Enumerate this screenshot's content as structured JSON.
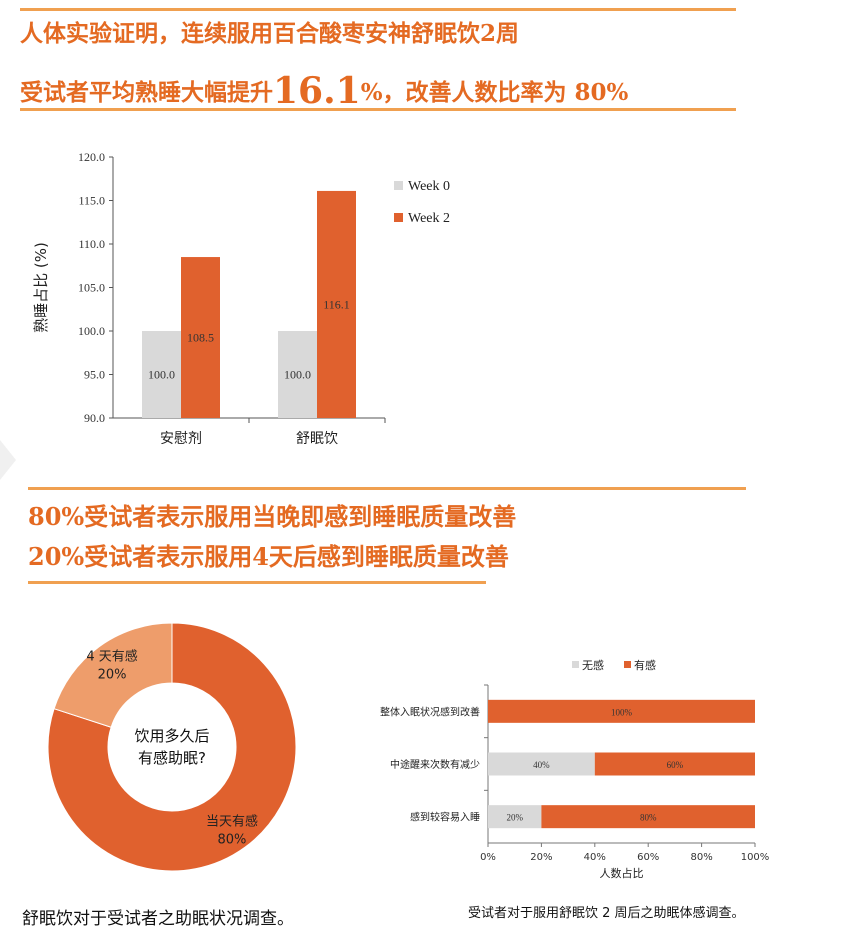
{
  "headline": {
    "line1": "人体实验证明，连续服用百合酸枣安神舒眠饮2周",
    "line2_prefix": "受试者平均熟睡大幅提升",
    "line2_big": "16.1",
    "line2_suffix": "%，改善人数比率为 80%",
    "line3": "80%受试者表示服用当晚即感到睡眠质量改善",
    "line4": "20%受试者表示服用4天后感到睡眠质量改善"
  },
  "colors": {
    "orange": "#e0612e",
    "gray": "#d9d9d9",
    "light_orange": "#ee9d6b",
    "accent": "#e46a22",
    "rule": "#f0a050"
  },
  "captions": {
    "donut": "舒眠饮对于受试者之助眠状况调查。",
    "hbar": "受试者对于服用舒眠饮 2 周后之助眠体感调查。"
  },
  "chart_data": [
    {
      "type": "bar",
      "ylabel": "熟睡占比 (%)",
      "categories": [
        "安慰剂",
        "舒眠饮"
      ],
      "series": [
        {
          "name": "Week 0",
          "values": [
            100.0,
            100.0
          ],
          "labels": [
            "100.0",
            "100.0"
          ],
          "color": "#d9d9d9"
        },
        {
          "name": "Week 2",
          "values": [
            108.5,
            116.1
          ],
          "labels": [
            "108.5",
            "116.1"
          ],
          "color": "#e0612e"
        }
      ],
      "ylim": [
        90,
        120
      ],
      "yticks": [
        "90.0",
        "95.0",
        "100.0",
        "105.0",
        "110.0",
        "115.0",
        "120.0"
      ],
      "legend": "right"
    },
    {
      "type": "pie",
      "center_text": [
        "饮用多久后",
        "有感助眠?"
      ],
      "slices": [
        {
          "label": "当天有感",
          "pct_label": "80%",
          "value": 80,
          "color": "#e0612e"
        },
        {
          "label": "4 天有感",
          "pct_label": "20%",
          "value": 20,
          "color": "#ee9d6b"
        }
      ]
    },
    {
      "type": "bar",
      "orientation": "horizontal-stacked",
      "categories": [
        "整体入眠状况感到改善",
        "中途醒来次数有减少",
        "感到较容易入睡"
      ],
      "series": [
        {
          "name": "无感",
          "values": [
            0,
            40,
            20
          ],
          "labels": [
            "",
            "40%",
            "20%"
          ],
          "color": "#d9d9d9"
        },
        {
          "name": "有感",
          "values": [
            100,
            60,
            80
          ],
          "labels": [
            "100%",
            "60%",
            "80%"
          ],
          "color": "#e0612e"
        }
      ],
      "xlabel": "人数占比",
      "xlim": [
        0,
        100
      ],
      "xticks": [
        "0%",
        "20%",
        "40%",
        "60%",
        "80%",
        "100%"
      ],
      "legend": "top"
    }
  ]
}
